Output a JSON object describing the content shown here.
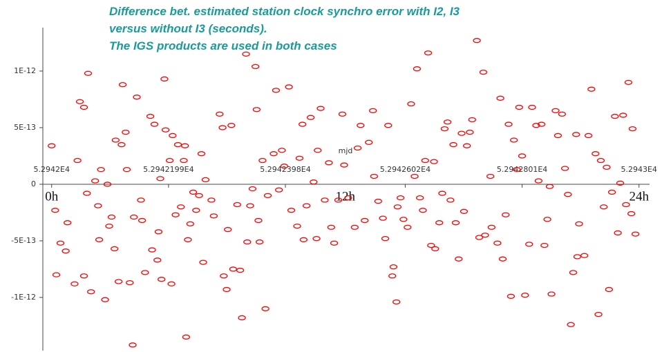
{
  "chart_data": {
    "type": "scatter",
    "title": [
      "Difference bet. estimated station clock synchro error with I2, I3",
      "versus without I3 (seconds).",
      "The IGS products are used in both cases"
    ],
    "x_label": "mjd",
    "annotations": [
      "0h",
      "12h",
      "24h"
    ],
    "color": "#ff0000",
    "xlim": [
      52941.985,
      52943.018
    ],
    "ylim": [
      -1.47e-12,
      1.384e-12
    ],
    "xticks": [
      {
        "value": 52942,
        "label": "5.2942E4"
      },
      {
        "value": 52942.199,
        "label": "5.2942199E4"
      },
      {
        "value": 52942.398,
        "label": "5.2942398E4"
      },
      {
        "value": 52942.602,
        "label": "5.2942602E4"
      },
      {
        "value": 52942.801,
        "label": "5.2942801E4"
      },
      {
        "value": 52943,
        "label": "5.2943E4"
      }
    ],
    "yticks": [
      {
        "value": -1e-12,
        "label": "-1E-12"
      },
      {
        "value": -5e-13,
        "label": "-5E-13"
      },
      0,
      {
        "value": 5e-13,
        "label": "5E-13"
      },
      {
        "value": 1e-12,
        "label": "1E-12"
      }
    ],
    "x": [
      52942.0,
      52942.006,
      52942.008,
      52942.015,
      52942.024,
      52942.027,
      52942.039,
      52942.044,
      52942.048,
      52942.055,
      52942.055,
      52942.06,
      52942.062,
      52942.067,
      52942.074,
      52942.079,
      52942.081,
      52942.084,
      52942.091,
      52942.095,
      52942.098,
      52942.102,
      52942.107,
      52942.109,
      52942.114,
      52942.119,
      52942.121,
      52942.126,
      52942.128,
      52942.133,
      52942.138,
      52942.14,
      52942.145,
      52942.152,
      52942.154,
      52942.159,
      52942.168,
      52942.171,
      52942.175,
      52942.18,
      52942.182,
      52942.185,
      52942.187,
      52942.192,
      52942.194,
      52942.201,
      52942.204,
      52942.206,
      52942.211,
      52942.215,
      52942.22,
      52942.225,
      52942.227,
      52942.229,
      52942.232,
      52942.236,
      52942.241,
      52942.246,
      52942.251,
      52942.255,
      52942.258,
      52942.262,
      52942.272,
      52942.276,
      52942.286,
      52942.291,
      52942.293,
      52942.298,
      52942.3,
      52942.306,
      52942.309,
      52942.316,
      52942.321,
      52942.324,
      52942.331,
      52942.333,
      52942.338,
      52942.342,
      52942.347,
      52942.349,
      52942.352,
      52942.354,
      52942.359,
      52942.364,
      52942.368,
      52942.378,
      52942.382,
      52942.387,
      52942.392,
      52942.396,
      52942.404,
      52942.408,
      52942.418,
      52942.422,
      52942.427,
      52942.429,
      52942.434,
      52942.441,
      52942.446,
      52942.451,
      52942.453,
      52942.458,
      52942.465,
      52942.472,
      52942.476,
      52942.481,
      52942.488,
      52942.495,
      52942.498,
      52942.505,
      52942.516,
      52942.521,
      52942.526,
      52942.533,
      52942.54,
      52942.547,
      52942.549,
      52942.556,
      52942.564,
      52942.568,
      52942.573,
      52942.58,
      52942.582,
      52942.587,
      52942.589,
      52942.594,
      52942.599,
      52942.606,
      52942.612,
      52942.618,
      52942.622,
      52942.627,
      52942.632,
      52942.636,
      52942.641,
      52942.646,
      52942.651,
      52942.653,
      52942.66,
      52942.665,
      52942.669,
      52942.674,
      52942.679,
      52942.684,
      52942.688,
      52942.693,
      52942.698,
      52942.702,
      52942.707,
      52942.712,
      52942.716,
      52942.724,
      52942.728,
      52942.735,
      52942.738,
      52942.747,
      52942.749,
      52942.759,
      52942.764,
      52942.768,
      52942.773,
      52942.778,
      52942.782,
      52942.787,
      52942.792,
      52942.796,
      52942.801,
      52942.806,
      52942.813,
      52942.818,
      52942.825,
      52942.829,
      52942.834,
      52942.839,
      52942.844,
      52942.848,
      52942.851,
      52942.858,
      52942.862,
      52942.869,
      52942.874,
      52942.879,
      52942.884,
      52942.888,
      52942.893,
      52942.895,
      52942.898,
      52942.907,
      52942.914,
      52942.919,
      52942.926,
      52942.931,
      52942.935,
      52942.94,
      52942.945,
      52942.949,
      52942.954,
      52942.959,
      52942.964,
      52942.968,
      52942.973,
      52942.978,
      52942.982,
      52942.987,
      52942.989,
      52942.994
    ],
    "values": [
      3.4e-13,
      -2.3e-13,
      -8e-13,
      -5.2e-13,
      -5.9e-13,
      -3.4e-13,
      -8.8e-13,
      2.1e-13,
      7.3e-13,
      6.8e-13,
      -8.1e-13,
      -8e-14,
      9.8e-13,
      -9.5e-13,
      3e-14,
      -1.9e-13,
      -4.9e-13,
      1.3e-13,
      -1.02e-12,
      0,
      -3.7e-13,
      -2.9e-13,
      -5.7e-13,
      3.9e-13,
      -8.6e-13,
      3.5e-13,
      8.8e-13,
      4.6e-13,
      1.3e-13,
      -8.7e-13,
      -1.42e-12,
      -2.9e-13,
      7.7e-13,
      -1.4e-13,
      -3.2e-13,
      -7.8e-13,
      6e-13,
      -5.8e-13,
      5.3e-13,
      -6.7e-13,
      -4.2e-13,
      5e-14,
      -8.4e-13,
      9.3e-13,
      4.8e-13,
      2.1e-13,
      -8.8e-13,
      4.3e-13,
      -2.7e-13,
      3.5e-13,
      -2e-13,
      2.1e-13,
      3.4e-13,
      -1.35e-12,
      -4.9e-13,
      -3.5e-13,
      -7e-14,
      -2.3e-13,
      -1e-13,
      2.7e-13,
      -6.9e-13,
      4e-14,
      -1.4e-13,
      -2.8e-13,
      6.2e-13,
      5e-13,
      -8.1e-13,
      -9.3e-13,
      -4e-13,
      5.2e-13,
      -7.5e-13,
      -1.8e-13,
      -7.6e-13,
      -1.18e-12,
      1.15e-12,
      -5.1e-13,
      -1.9e-13,
      -4e-14,
      1.04e-12,
      6.6e-13,
      -3.2e-13,
      -5.1e-13,
      2.1e-13,
      -1.1e-12,
      -1e-13,
      2.7e-13,
      8.3e-13,
      -5e-14,
      3e-13,
      1.6e-13,
      8.6e-13,
      -2.3e-13,
      -3.7e-13,
      2.3e-13,
      5.3e-13,
      -4.9e-13,
      -1.9e-13,
      5.9e-13,
      2e-14,
      -4.8e-13,
      3e-13,
      6.7e-13,
      -1.4e-13,
      1.9e-13,
      -3.8e-13,
      -5.2e-13,
      -1.4e-13,
      6.2e-13,
      1.7e-13,
      -1.2e-13,
      -3.8e-13,
      3.2e-13,
      5.2e-13,
      -3.2e-13,
      3.7e-13,
      6.5e-13,
      7e-14,
      -1.5e-13,
      -3e-13,
      -4.8e-13,
      5.2e-13,
      -8.1e-13,
      -7.3e-13,
      -1.04e-12,
      -2e-13,
      -1.2e-13,
      -3.1e-13,
      -3.8e-13,
      7.1e-13,
      7e-14,
      1.02e-12,
      -1.2e-13,
      -2.3e-13,
      2.1e-13,
      1.16e-12,
      -5.4e-13,
      2e-13,
      -5.7e-13,
      -3.4e-13,
      -8e-14,
      4.9e-13,
      5.5e-13,
      -1.4e-13,
      3.5e-13,
      -3.4e-13,
      -6.6e-13,
      4.5e-13,
      -2.4e-13,
      3.4e-13,
      4.6e-13,
      5.7e-13,
      1.27e-12,
      -4.7e-13,
      9.9e-13,
      -4.5e-13,
      7e-14,
      -3.8e-13,
      -5.2e-13,
      7.6e-13,
      -6.6e-13,
      -2.7e-13,
      5.3e-13,
      -9.9e-13,
      3.9e-13,
      1.3e-13,
      6.8e-13,
      2.5e-13,
      -9.8e-13,
      -5.3e-13,
      6.8e-13,
      5.2e-13,
      3e-14,
      5.3e-13,
      -5.4e-13,
      -3.1e-13,
      -2e-14,
      -9.7e-13,
      6.5e-13,
      4.3e-13,
      6.2e-13,
      1.4e-13,
      -9e-14,
      -1.24e-12,
      -7.8e-13,
      4.4e-13,
      -6.4e-13,
      -3.5e-13,
      -6.3e-13,
      4.3e-13,
      8.4e-13,
      2.7e-13,
      -1.15e-12,
      2.1e-13,
      -2e-13,
      1.5e-13,
      -9.3e-13,
      -7e-14,
      6e-13,
      -4.3e-13,
      1e-14,
      6.1e-13,
      -1.8e-13,
      9e-13,
      -2.6e-13,
      4.9e-13,
      -4.4e-13
    ]
  }
}
